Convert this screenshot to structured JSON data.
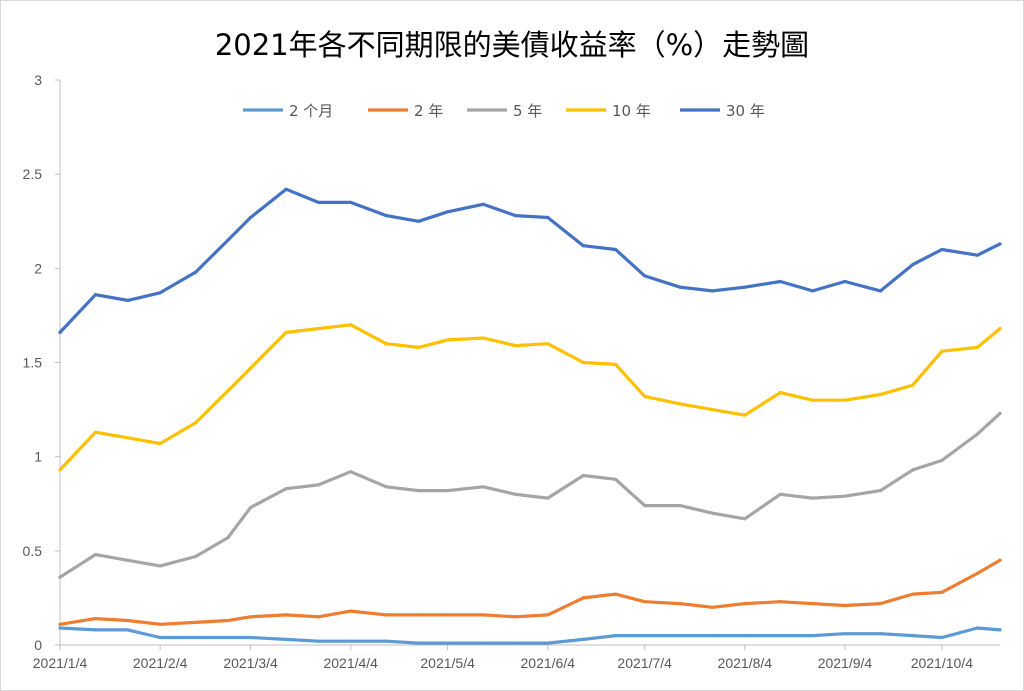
{
  "chart_data": {
    "type": "line",
    "title": "2021年各不同期限的美債收益率（%）走勢圖",
    "xlabel": "",
    "ylabel": "",
    "ylim": [
      0,
      3
    ],
    "yticks": [
      "0",
      "0.5",
      "1",
      "1.5",
      "2",
      "2.5",
      "3"
    ],
    "xticks": [
      "2021/1/4",
      "2021/2/4",
      "2021/3/4",
      "2021/4/4",
      "2021/5/4",
      "2021/6/4",
      "2021/7/4",
      "2021/8/4",
      "2021/9/4",
      "2021/10/4"
    ],
    "grid": false,
    "legend": "top",
    "x": [
      "2021/1/4",
      "2021/1/15",
      "2021/1/25",
      "2021/2/4",
      "2021/2/15",
      "2021/2/25",
      "2021/3/4",
      "2021/3/15",
      "2021/3/25",
      "2021/4/4",
      "2021/4/15",
      "2021/4/25",
      "2021/5/4",
      "2021/5/15",
      "2021/5/25",
      "2021/6/4",
      "2021/6/15",
      "2021/6/25",
      "2021/7/4",
      "2021/7/15",
      "2021/7/25",
      "2021/8/4",
      "2021/8/15",
      "2021/8/25",
      "2021/9/4",
      "2021/9/15",
      "2021/9/25",
      "2021/10/4",
      "2021/10/15",
      "2021/10/22"
    ],
    "series": [
      {
        "name": "2 个月",
        "color": "#5b9bd5",
        "values": [
          0.09,
          0.08,
          0.08,
          0.04,
          0.04,
          0.04,
          0.04,
          0.03,
          0.02,
          0.02,
          0.02,
          0.01,
          0.01,
          0.01,
          0.01,
          0.01,
          0.03,
          0.05,
          0.05,
          0.05,
          0.05,
          0.05,
          0.05,
          0.05,
          0.06,
          0.06,
          0.05,
          0.04,
          0.09,
          0.08
        ]
      },
      {
        "name": "2 年",
        "color": "#ed7d31",
        "values": [
          0.11,
          0.14,
          0.13,
          0.11,
          0.12,
          0.13,
          0.15,
          0.16,
          0.15,
          0.18,
          0.16,
          0.16,
          0.16,
          0.16,
          0.15,
          0.16,
          0.25,
          0.27,
          0.23,
          0.22,
          0.2,
          0.22,
          0.23,
          0.22,
          0.21,
          0.22,
          0.27,
          0.28,
          0.38,
          0.45
        ]
      },
      {
        "name": "5 年",
        "color": "#a5a5a5",
        "values": [
          0.36,
          0.48,
          0.45,
          0.42,
          0.47,
          0.57,
          0.73,
          0.83,
          0.85,
          0.92,
          0.84,
          0.82,
          0.82,
          0.84,
          0.8,
          0.78,
          0.9,
          0.88,
          0.74,
          0.74,
          0.7,
          0.67,
          0.8,
          0.78,
          0.79,
          0.82,
          0.93,
          0.98,
          1.12,
          1.23
        ]
      },
      {
        "name": "10 年",
        "color": "#ffc000",
        "values": [
          0.93,
          1.13,
          1.1,
          1.07,
          1.18,
          1.35,
          1.47,
          1.66,
          1.68,
          1.7,
          1.6,
          1.58,
          1.62,
          1.63,
          1.59,
          1.6,
          1.5,
          1.49,
          1.32,
          1.28,
          1.25,
          1.22,
          1.34,
          1.3,
          1.3,
          1.33,
          1.38,
          1.56,
          1.58,
          1.68
        ]
      },
      {
        "name": "30 年",
        "color": "#4472c4",
        "values": [
          1.66,
          1.86,
          1.83,
          1.87,
          1.98,
          2.15,
          2.27,
          2.42,
          2.35,
          2.35,
          2.28,
          2.25,
          2.3,
          2.34,
          2.28,
          2.27,
          2.12,
          2.1,
          1.96,
          1.9,
          1.88,
          1.9,
          1.93,
          1.88,
          1.93,
          1.88,
          2.02,
          2.1,
          2.07,
          2.13
        ]
      }
    ]
  }
}
